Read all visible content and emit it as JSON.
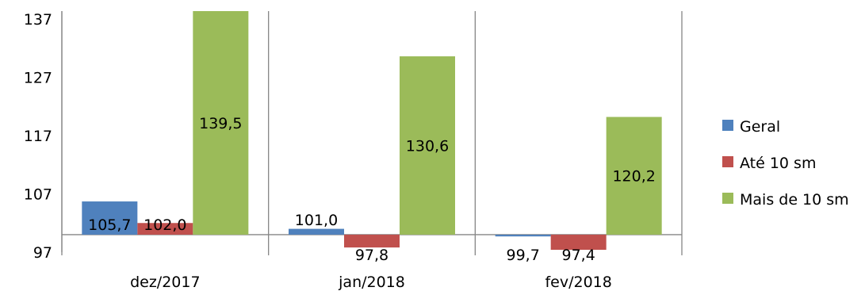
{
  "chart_data": {
    "type": "bar",
    "title": "",
    "xlabel": "",
    "ylabel": "",
    "categories": [
      "dez/2017",
      "jan/2018",
      "fev/2018"
    ],
    "baseline": 100,
    "ylim": [
      97,
      139
    ],
    "yticks": [
      "97",
      "107",
      "117",
      "127",
      "137"
    ],
    "ytick_values": [
      97,
      107,
      117,
      127,
      137
    ],
    "grid": false,
    "legend_position": "right",
    "series": [
      {
        "name": "Geral",
        "color": "#4F81BD",
        "values": [
          105.7,
          101.0,
          99.7
        ],
        "labels": [
          "105,7",
          "101,0",
          "99,7"
        ]
      },
      {
        "name": "Até 10 sm",
        "color": "#C0504D",
        "values": [
          102.0,
          97.8,
          97.4
        ],
        "labels": [
          "102,0",
          "97,8",
          "97,4"
        ]
      },
      {
        "name": "Mais de 10 sm",
        "color": "#9BBB59",
        "values": [
          139.5,
          130.6,
          120.2
        ],
        "labels": [
          "139,5",
          "130,6",
          "120,2"
        ]
      }
    ]
  }
}
